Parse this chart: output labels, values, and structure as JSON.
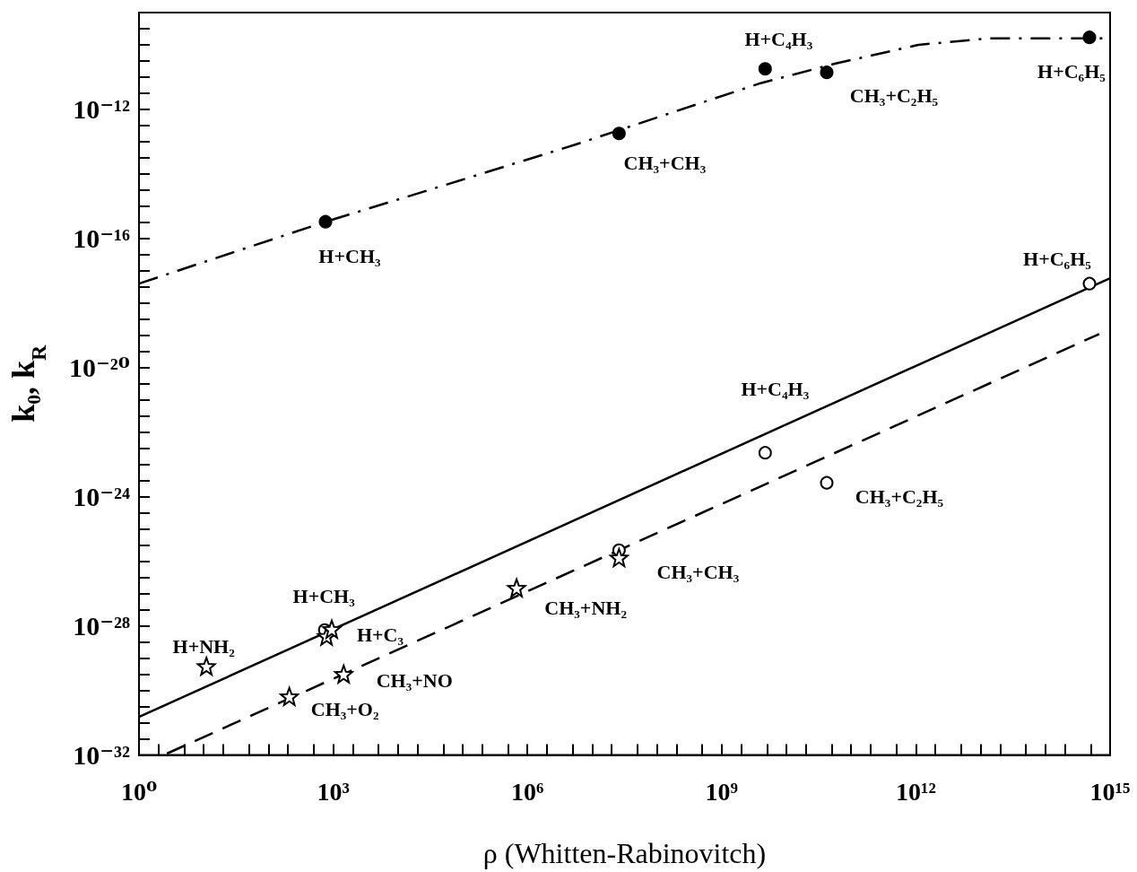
{
  "chart_data": {
    "type": "scatter",
    "xlabel": "ρ (Whitten-Rabinovitch)",
    "ylabel": "k₀, k$_{R}$",
    "log": "xy",
    "grid": false,
    "xlim": [
      1,
      1000000000000000.0
    ],
    "ylim": [
      1e-32,
      1e-09
    ],
    "xticks": [
      {
        "value": 1,
        "label": "10⁰"
      },
      {
        "value": 2,
        "label": null
      },
      {
        "value": 5,
        "label": null
      },
      {
        "value": 10,
        "label": null
      },
      {
        "value": 20,
        "label": null
      },
      {
        "value": 50,
        "label": null
      },
      {
        "value": 100,
        "label": null
      },
      {
        "value": 200,
        "label": null
      },
      {
        "value": 500,
        "label": null
      },
      {
        "value": 1000,
        "label": "10³"
      },
      {
        "value": 2000,
        "label": null
      },
      {
        "value": 5000,
        "label": null
      },
      {
        "value": 10000.0,
        "label": null
      },
      {
        "value": 20000.0,
        "label": null
      },
      {
        "value": 50000.0,
        "label": null
      },
      {
        "value": 100000.0,
        "label": null
      },
      {
        "value": 200000.0,
        "label": null
      },
      {
        "value": 500000.0,
        "label": null
      },
      {
        "value": 1000000.0,
        "label": "10⁶"
      },
      {
        "value": 2000000.0,
        "label": null
      },
      {
        "value": 5000000.0,
        "label": null
      },
      {
        "value": 10000000.0,
        "label": null
      },
      {
        "value": 20000000.0,
        "label": null
      },
      {
        "value": 50000000.0,
        "label": null
      },
      {
        "value": 100000000.0,
        "label": null
      },
      {
        "value": 200000000.0,
        "label": null
      },
      {
        "value": 500000000.0,
        "label": null
      },
      {
        "value": 1000000000.0,
        "label": "10⁹"
      },
      {
        "value": 2000000000.0,
        "label": null
      },
      {
        "value": 5000000000.0,
        "label": null
      },
      {
        "value": 10000000000.0,
        "label": null
      },
      {
        "value": 20000000000.0,
        "label": null
      },
      {
        "value": 50000000000.0,
        "label": null
      },
      {
        "value": 100000000000.0,
        "label": null
      },
      {
        "value": 200000000000.0,
        "label": null
      },
      {
        "value": 500000000000.0,
        "label": null
      },
      {
        "value": 1000000000000.0,
        "label": "10¹²"
      },
      {
        "value": 2000000000000.0,
        "label": null
      },
      {
        "value": 5000000000000.0,
        "label": null
      },
      {
        "value": 10000000000000.0,
        "label": null
      },
      {
        "value": 20000000000000.0,
        "label": null
      },
      {
        "value": 50000000000000.0,
        "label": null
      },
      {
        "value": 100000000000000.0,
        "label": null
      },
      {
        "value": 200000000000000.0,
        "label": null
      },
      {
        "value": 500000000000000.0,
        "label": null
      },
      {
        "value": 1000000000000000.0,
        "label": "10¹⁵"
      }
    ],
    "yticks": [
      {
        "value": 1e-32,
        "label": "10⁻³²"
      },
      {
        "value": 3.16e-32,
        "label": null
      },
      {
        "value": 1e-31,
        "label": null
      },
      {
        "value": 3.16e-31,
        "label": null
      },
      {
        "value": 1e-30,
        "label": null
      },
      {
        "value": 3.16e-30,
        "label": null
      },
      {
        "value": 1e-29,
        "label": null
      },
      {
        "value": 3.16e-29,
        "label": null
      },
      {
        "value": 1e-28,
        "label": "10⁻²⁸"
      },
      {
        "value": 3.16e-28,
        "label": null
      },
      {
        "value": 1e-27,
        "label": null
      },
      {
        "value": 3.16e-27,
        "label": null
      },
      {
        "value": 1e-26,
        "label": null
      },
      {
        "value": 3.16e-26,
        "label": null
      },
      {
        "value": 1e-25,
        "label": null
      },
      {
        "value": 3.16e-25,
        "label": null
      },
      {
        "value": 1e-24,
        "label": "10⁻²⁴"
      },
      {
        "value": 3.16e-24,
        "label": null
      },
      {
        "value": 1e-23,
        "label": null
      },
      {
        "value": 3.16e-23,
        "label": null
      },
      {
        "value": 1e-22,
        "label": null
      },
      {
        "value": 3.16e-22,
        "label": null
      },
      {
        "value": 1e-21,
        "label": null
      },
      {
        "value": 3.16e-21,
        "label": null
      },
      {
        "value": 1e-20,
        "label": "10⁻²⁰"
      },
      {
        "value": 3.16e-20,
        "label": null
      },
      {
        "value": 1e-19,
        "label": null
      },
      {
        "value": 3.16e-19,
        "label": null
      },
      {
        "value": 1e-18,
        "label": null
      },
      {
        "value": 3.16e-18,
        "label": null
      },
      {
        "value": 1e-17,
        "label": null
      },
      {
        "value": 3.16e-17,
        "label": null
      },
      {
        "value": 1e-16,
        "label": "10⁻¹⁶"
      },
      {
        "value": 3.16e-16,
        "label": null
      },
      {
        "value": 1e-15,
        "label": null
      },
      {
        "value": 3.16e-15,
        "label": null
      },
      {
        "value": 1e-14,
        "label": null
      },
      {
        "value": 3.16e-14,
        "label": null
      },
      {
        "value": 1e-13,
        "label": null
      },
      {
        "value": 3.16e-13,
        "label": null
      },
      {
        "value": 1e-12,
        "label": "10⁻¹²"
      },
      {
        "value": 3.16e-12,
        "label": null
      },
      {
        "value": 1e-11,
        "label": null
      },
      {
        "value": 3.16e-11,
        "label": null
      },
      {
        "value": 1e-10,
        "label": null
      },
      {
        "value": 3.16e-10,
        "label": null
      },
      {
        "value": 1e-09,
        "label": null
      }
    ],
    "series": [
      {
        "marker": "circle",
        "color": "#000000",
        "x": [
          760,
          26000000.0,
          4700000000.0,
          42000000000.0,
          480000000000000.0
        ],
        "values": [
          3.3e-16,
          1.8e-13,
          1.8e-11,
          1.4e-11,
          1.7e-10
        ]
      },
      {
        "marker": "circle",
        "color": "#ffffff",
        "x": [
          480000000000000.0,
          4700000000.0,
          42000000000.0,
          26000000.0,
          740
        ],
        "values": [
          4e-18,
          2.3e-23,
          2.7e-24,
          2.2e-26,
          7.4e-29
        ]
      },
      {
        "marker": "star",
        "color": "#ffffff",
        "x": [
          11,
          790,
          950,
          210,
          1450,
          680000.0,
          26000000.0
        ],
        "values": [
          5.6e-30,
          4.8e-29,
          7.9e-29,
          6.5e-31,
          3.2e-30,
          1.5e-27,
          1.3e-26
        ]
      },
      {
        "type": "line",
        "marker": "none",
        "line_style": "solid",
        "color": "#000000",
        "x": [
          1,
          1000000000000000.0
        ],
        "values": [
          1.5e-31,
          5.9e-18
        ]
      },
      {
        "type": "line",
        "marker": "none",
        "line_style": "dashed",
        "color": "#000000",
        "x": [
          2.7,
          680000000000000.0
        ],
        "values": [
          1.1e-32,
          1.1e-19
        ]
      },
      {
        "type": "line",
        "marker": "none",
        "line_style": "dashdot",
        "color": "#000000",
        "x": [
          1,
          760,
          32000.0,
          5200000.0,
          4000000000.0,
          56000000000.0,
          1100000000000.0,
          14000000000000.0,
          1000000000000000.0
        ],
        "values": [
          4e-18,
          3.3e-16,
          3.3e-15,
          7.8e-14,
          6.5e-12,
          2.6e-11,
          1e-10,
          1.6e-10,
          1.6e-10
        ]
      }
    ],
    "annotations": [
      {
        "text": "H+CH₃",
        "x": 760,
        "y": 3.3e-16
      },
      {
        "text": "CH₃+CH₃",
        "x": 26000000.0,
        "y": 1.8e-13
      },
      {
        "text": "H+C₄H₃",
        "x": 4700000000.0,
        "y": 1.8e-11
      },
      {
        "text": "CH₃+C₂H₅",
        "x": 42000000000.0,
        "y": 1.4e-11
      },
      {
        "text": "H+C₆H₅",
        "x": 480000000000000.0,
        "y": 1.7e-10
      },
      {
        "text": "H+C₆H₅",
        "x": 480000000000000.0,
        "y": 4e-18
      },
      {
        "text": "H+C₄H₃",
        "x": 4700000000.0,
        "y": 2.3e-23
      },
      {
        "text": "CH₃+C₂H₅",
        "x": 42000000000.0,
        "y": 2.7e-24
      },
      {
        "text": "CH₃+CH₃",
        "x": 26000000.0,
        "y": 1.3e-26
      },
      {
        "text": "CH₃+NH₂",
        "x": 680000.0,
        "y": 1.5e-27
      },
      {
        "text": "H+CH₃",
        "x": 740,
        "y": 7.4e-29
      },
      {
        "text": "H+C₃",
        "x": 950,
        "y": 7.9e-29
      },
      {
        "text": "H+NH₂",
        "x": 11,
        "y": 5.6e-30
      },
      {
        "text": "CH₃+NO",
        "x": 1450,
        "y": 3.2e-30
      },
      {
        "text": "CH₃+O₂",
        "x": 210,
        "y": 6.5e-31
      }
    ]
  }
}
